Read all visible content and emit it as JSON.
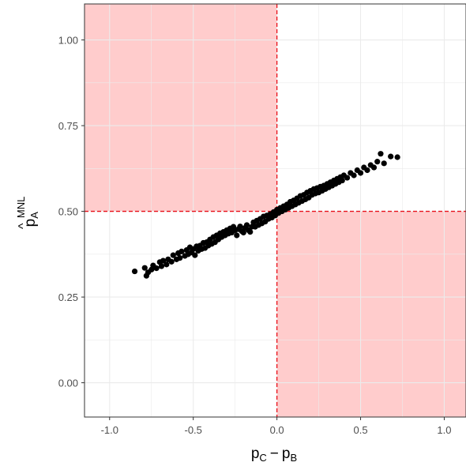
{
  "chart_data": {
    "type": "scatter",
    "title": "",
    "xlabel": {
      "main": "p",
      "sub1": "C",
      "minus": "−",
      "main2": "p",
      "sub2": "B"
    },
    "ylabel": {
      "hat": "^",
      "main": "p",
      "sub": "A",
      "sup": "MNL"
    },
    "xlim": [
      -1.15,
      1.13
    ],
    "ylim": [
      -0.1,
      1.105
    ],
    "x_ticks": [
      -1.0,
      -0.5,
      0.0,
      0.5,
      1.0
    ],
    "x_tick_labels": [
      "-1.0",
      "-0.5",
      "0.0",
      "0.5",
      "1.0"
    ],
    "y_ticks": [
      0.0,
      0.25,
      0.5,
      0.75,
      1.0
    ],
    "y_tick_labels": [
      "0.00",
      "0.25",
      "0.50",
      "0.75",
      "1.00"
    ],
    "grid": true,
    "legend": "none",
    "reference_lines": {
      "x": 0.0,
      "y": 0.5,
      "color": "#e8101a",
      "style": "dashed"
    },
    "shaded_regions": [
      {
        "x": [
          -1.15,
          0.0
        ],
        "y": [
          0.5,
          1.105
        ],
        "color": "#ffcccc"
      },
      {
        "x": [
          0.0,
          1.13
        ],
        "y": [
          -0.1,
          0.5
        ],
        "color": "#ffcccc"
      }
    ],
    "point_color": "#000000",
    "series": [
      {
        "points": [
          [
            -0.85,
            0.325
          ],
          [
            -0.79,
            0.335
          ],
          [
            -0.78,
            0.312
          ],
          [
            -0.77,
            0.322
          ],
          [
            -0.75,
            0.33
          ],
          [
            -0.74,
            0.342
          ],
          [
            -0.72,
            0.334
          ],
          [
            -0.7,
            0.352
          ],
          [
            -0.69,
            0.34
          ],
          [
            -0.68,
            0.356
          ],
          [
            -0.66,
            0.345
          ],
          [
            -0.65,
            0.36
          ],
          [
            -0.63,
            0.353
          ],
          [
            -0.62,
            0.372
          ],
          [
            -0.6,
            0.36
          ],
          [
            -0.59,
            0.378
          ],
          [
            -0.58,
            0.364
          ],
          [
            -0.57,
            0.383
          ],
          [
            -0.55,
            0.37
          ],
          [
            -0.54,
            0.387
          ],
          [
            -0.53,
            0.375
          ],
          [
            -0.52,
            0.395
          ],
          [
            -0.51,
            0.38
          ],
          [
            -0.5,
            0.39
          ],
          [
            -0.49,
            0.372
          ],
          [
            -0.48,
            0.398
          ],
          [
            -0.47,
            0.385
          ],
          [
            -0.46,
            0.4
          ],
          [
            -0.45,
            0.39
          ],
          [
            -0.44,
            0.408
          ],
          [
            -0.43,
            0.393
          ],
          [
            -0.42,
            0.41
          ],
          [
            -0.41,
            0.4
          ],
          [
            -0.4,
            0.418
          ],
          [
            -0.39,
            0.405
          ],
          [
            -0.38,
            0.425
          ],
          [
            -0.37,
            0.41
          ],
          [
            -0.36,
            0.43
          ],
          [
            -0.35,
            0.418
          ],
          [
            -0.34,
            0.436
          ],
          [
            -0.33,
            0.425
          ],
          [
            -0.32,
            0.44
          ],
          [
            -0.31,
            0.43
          ],
          [
            -0.3,
            0.445
          ],
          [
            -0.29,
            0.435
          ],
          [
            -0.28,
            0.45
          ],
          [
            -0.27,
            0.438
          ],
          [
            -0.26,
            0.455
          ],
          [
            -0.25,
            0.445
          ],
          [
            -0.24,
            0.43
          ],
          [
            -0.23,
            0.448
          ],
          [
            -0.22,
            0.456
          ],
          [
            -0.21,
            0.442
          ],
          [
            -0.2,
            0.438
          ],
          [
            -0.19,
            0.452
          ],
          [
            -0.18,
            0.46
          ],
          [
            -0.17,
            0.445
          ],
          [
            -0.16,
            0.44
          ],
          [
            -0.15,
            0.455
          ],
          [
            -0.14,
            0.468
          ],
          [
            -0.13,
            0.455
          ],
          [
            -0.12,
            0.473
          ],
          [
            -0.11,
            0.46
          ],
          [
            -0.1,
            0.478
          ],
          [
            -0.09,
            0.465
          ],
          [
            -0.08,
            0.485
          ],
          [
            -0.07,
            0.47
          ],
          [
            -0.06,
            0.488
          ],
          [
            -0.05,
            0.478
          ],
          [
            -0.04,
            0.492
          ],
          [
            -0.03,
            0.482
          ],
          [
            -0.02,
            0.498
          ],
          [
            -0.01,
            0.488
          ],
          [
            0.0,
            0.505
          ],
          [
            0.01,
            0.495
          ],
          [
            0.02,
            0.51
          ],
          [
            0.03,
            0.5
          ],
          [
            0.04,
            0.515
          ],
          [
            0.05,
            0.505
          ],
          [
            0.06,
            0.52
          ],
          [
            0.07,
            0.51
          ],
          [
            0.08,
            0.528
          ],
          [
            0.09,
            0.515
          ],
          [
            0.1,
            0.532
          ],
          [
            0.11,
            0.52
          ],
          [
            0.12,
            0.538
          ],
          [
            0.13,
            0.525
          ],
          [
            0.14,
            0.545
          ],
          [
            0.15,
            0.53
          ],
          [
            0.16,
            0.548
          ],
          [
            0.17,
            0.535
          ],
          [
            0.18,
            0.555
          ],
          [
            0.19,
            0.54
          ],
          [
            0.2,
            0.56
          ],
          [
            0.21,
            0.548
          ],
          [
            0.22,
            0.565
          ],
          [
            0.23,
            0.552
          ],
          [
            0.24,
            0.568
          ],
          [
            0.25,
            0.555
          ],
          [
            0.26,
            0.572
          ],
          [
            0.27,
            0.56
          ],
          [
            0.28,
            0.575
          ],
          [
            0.29,
            0.565
          ],
          [
            0.3,
            0.58
          ],
          [
            0.31,
            0.57
          ],
          [
            0.32,
            0.585
          ],
          [
            0.33,
            0.575
          ],
          [
            0.34,
            0.59
          ],
          [
            0.35,
            0.58
          ],
          [
            0.36,
            0.595
          ],
          [
            0.37,
            0.585
          ],
          [
            0.38,
            0.6
          ],
          [
            0.39,
            0.59
          ],
          [
            0.4,
            0.605
          ],
          [
            0.42,
            0.598
          ],
          [
            0.44,
            0.612
          ],
          [
            0.46,
            0.605
          ],
          [
            0.48,
            0.62
          ],
          [
            0.5,
            0.612
          ],
          [
            0.52,
            0.628
          ],
          [
            0.54,
            0.62
          ],
          [
            0.56,
            0.635
          ],
          [
            0.58,
            0.628
          ],
          [
            0.6,
            0.645
          ],
          [
            0.62,
            0.668
          ],
          [
            0.64,
            0.64
          ],
          [
            0.68,
            0.66
          ],
          [
            0.72,
            0.658
          ]
        ]
      }
    ]
  }
}
